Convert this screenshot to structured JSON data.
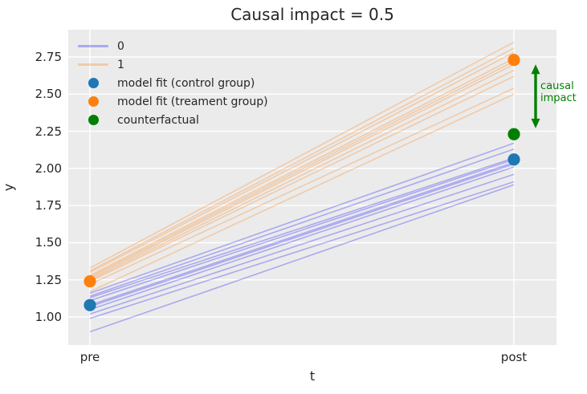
{
  "chart_data": {
    "type": "line",
    "title": "Causal impact = 0.5",
    "xlabel": "t",
    "ylabel": "y",
    "x_categories": [
      "pre",
      "post"
    ],
    "yticks": [
      "1.00",
      "1.25",
      "1.50",
      "1.75",
      "2.00",
      "2.25",
      "2.50",
      "2.75"
    ],
    "ylim": [
      0.81,
      2.94
    ],
    "grid": true,
    "colors": {
      "axes_background": "#ebebeb",
      "grid_line": "#ffffff",
      "control": "#1f77b4",
      "treatment": "#ff7f0e",
      "counterfactual": "#008000",
      "group0_line": "#0000ff",
      "group1_line": "#ff7f0e",
      "text": "#262626"
    },
    "groups": [
      {
        "name": "0",
        "color": "#0000ff",
        "opacity": 0.28,
        "lines": [
          {
            "pre": 1.16,
            "post": 2.17
          },
          {
            "pre": 1.14,
            "post": 2.13
          },
          {
            "pre": 1.13,
            "post": 2.07
          },
          {
            "pre": 1.11,
            "post": 2.06
          },
          {
            "pre": 1.08,
            "post": 2.04
          },
          {
            "pre": 1.07,
            "post": 2.03
          },
          {
            "pre": 1.05,
            "post": 2.01
          },
          {
            "pre": 1.02,
            "post": 1.96
          },
          {
            "pre": 0.99,
            "post": 1.91
          },
          {
            "pre": 0.9,
            "post": 1.89
          }
        ]
      },
      {
        "name": "1",
        "color": "#ff7f0e",
        "opacity": 0.3,
        "lines": [
          {
            "pre": 1.33,
            "post": 2.85
          },
          {
            "pre": 1.31,
            "post": 2.81
          },
          {
            "pre": 1.3,
            "post": 2.78
          },
          {
            "pre": 1.28,
            "post": 2.74
          },
          {
            "pre": 1.27,
            "post": 2.72
          },
          {
            "pre": 1.26,
            "post": 2.7
          },
          {
            "pre": 1.25,
            "post": 2.66
          },
          {
            "pre": 1.24,
            "post": 2.62
          },
          {
            "pre": 1.22,
            "post": 2.54
          },
          {
            "pre": 1.17,
            "post": 2.5
          }
        ]
      }
    ],
    "markers": [
      {
        "name": "model fit (control group)",
        "color": "#1f77b4",
        "points": [
          {
            "x": "pre",
            "y": 1.08
          },
          {
            "x": "post",
            "y": 2.06
          }
        ]
      },
      {
        "name": "model fit (treament group)",
        "color": "#ff7f0e",
        "points": [
          {
            "x": "pre",
            "y": 1.24
          },
          {
            "x": "post",
            "y": 2.73
          }
        ]
      },
      {
        "name": "counterfactual",
        "color": "#008000",
        "points": [
          {
            "x": "post",
            "y": 2.23
          }
        ]
      }
    ],
    "legend": {
      "position": "upper left",
      "items": [
        {
          "swatch": "line",
          "color": "#0000ff",
          "opacity": 0.28,
          "label": "0"
        },
        {
          "swatch": "line",
          "color": "#ff7f0e",
          "opacity": 0.3,
          "label": "1"
        },
        {
          "swatch": "dot",
          "color": "#1f77b4",
          "opacity": 1,
          "label": "model fit (control group)"
        },
        {
          "swatch": "dot",
          "color": "#ff7f0e",
          "opacity": 1,
          "label": "model fit (treament group)"
        },
        {
          "swatch": "dot",
          "color": "#008000",
          "opacity": 1,
          "label": "counterfactual"
        }
      ]
    },
    "annotation": {
      "label_lines": [
        "causal",
        "impact"
      ],
      "color": "#008000",
      "arrow": {
        "x_category": "post",
        "y_from": 2.7,
        "y_to": 2.27
      }
    }
  }
}
